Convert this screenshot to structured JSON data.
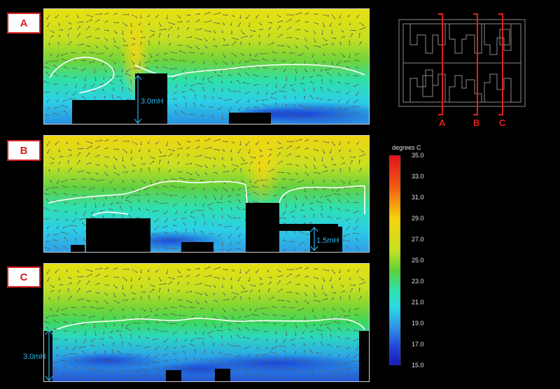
{
  "panels": [
    {
      "id": "A",
      "label": "A",
      "height_label": "3.0mH"
    },
    {
      "id": "B",
      "label": "B",
      "height_label": "1.5mH"
    },
    {
      "id": "C",
      "label": "C",
      "height_label": "3.0mH"
    }
  ],
  "colorbar": {
    "title": "degrees C",
    "min": 15.0,
    "max": 35.0,
    "ticks": [
      "35.0",
      "33.0",
      "31.0",
      "29.0",
      "27.0",
      "25.0",
      "23.0",
      "21.0",
      "19.0",
      "17.0",
      "15.0"
    ]
  },
  "plan": {
    "section_labels": [
      "A",
      "B",
      "C"
    ]
  },
  "colors": {
    "label_border": "#d82020",
    "dimension": "#29b6e8",
    "isotherm": "#ffffff",
    "section_line": "#e32020"
  }
}
